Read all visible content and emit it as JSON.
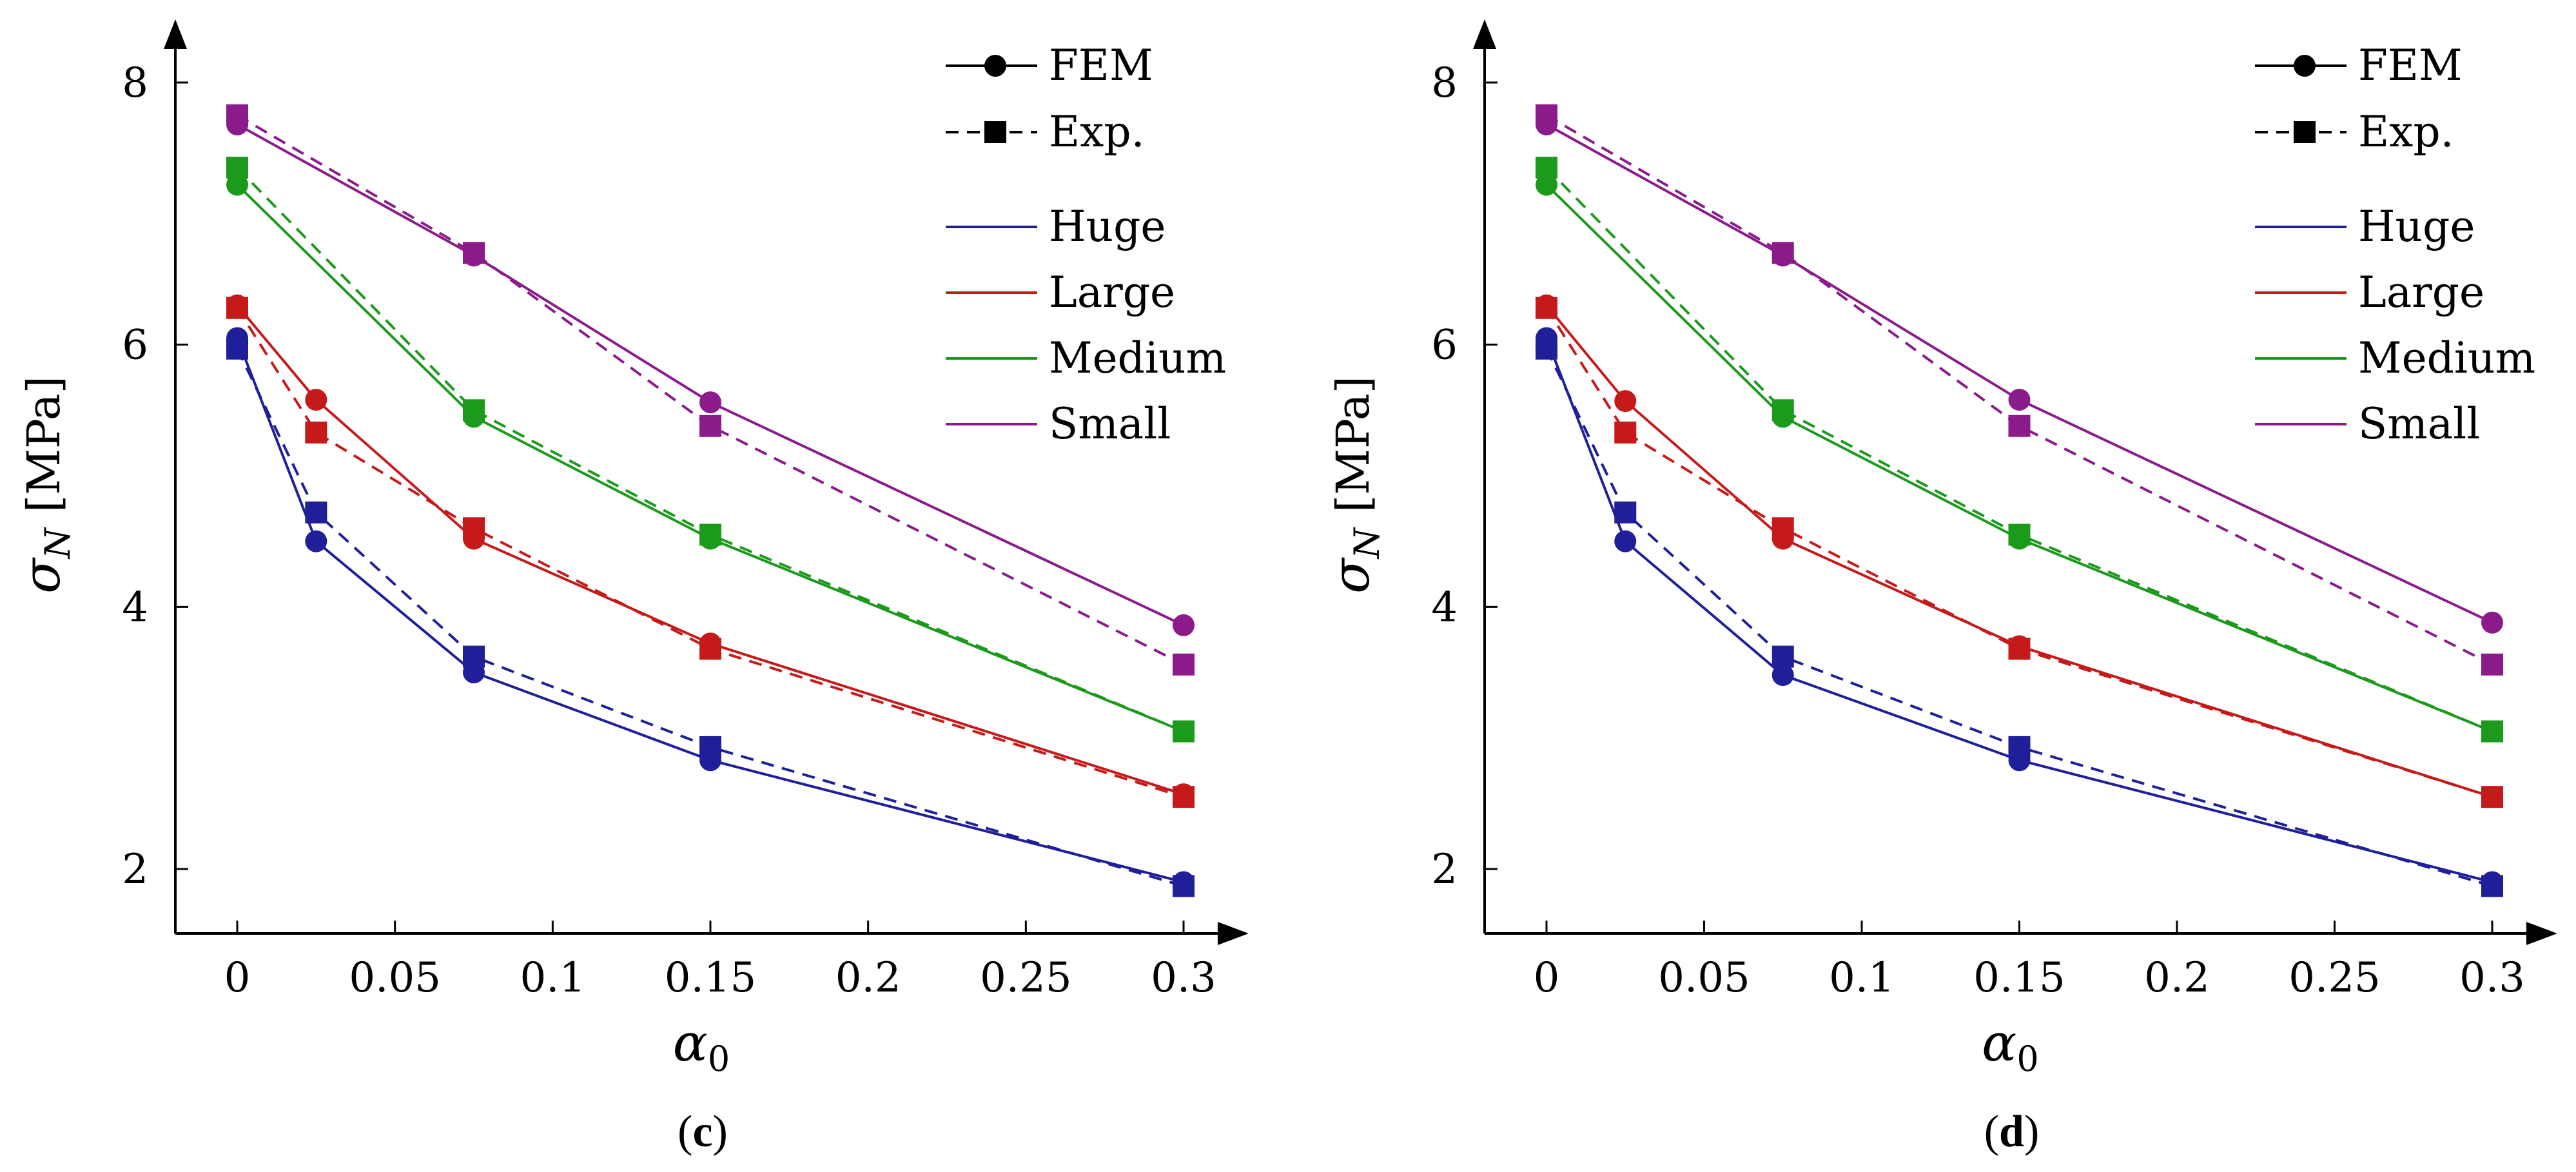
{
  "chart_data": [
    {
      "type": "line",
      "panel": "c",
      "caption": {
        "open": "(",
        "letter": "c",
        "close": ")"
      },
      "xlabel": "α",
      "xlabel_sub": "0",
      "ylabel": "σ",
      "ylabel_sub": "N",
      "ylabel_unit": "[MPa]",
      "xlim": [
        -0.02,
        0.31
      ],
      "ylim": [
        1.5,
        8.5
      ],
      "xticks": [
        0,
        0.05,
        0.1,
        0.15,
        0.2,
        0.25,
        0.3
      ],
      "xtick_labels": [
        "0",
        "0.05",
        "0.1",
        "0.15",
        "0.2",
        "0.25",
        "0.3"
      ],
      "yticks": [
        2,
        4,
        6,
        8
      ],
      "ytick_labels": [
        "2",
        "4",
        "6",
        "8"
      ],
      "legend_position": "top-right",
      "legend_styles": [
        {
          "label": "FEM",
          "line": "solid",
          "marker": "circle"
        },
        {
          "label": "Exp.",
          "line": "dashed",
          "marker": "square"
        }
      ],
      "series": [
        {
          "name": "Huge",
          "color": "#1f1f9a",
          "fem": {
            "x": [
              0,
              0.025,
              0.075,
              0.15,
              0.3
            ],
            "y": [
              6.05,
              4.5,
              3.5,
              2.83,
              1.9
            ]
          },
          "exp": {
            "x": [
              0,
              0.025,
              0.075,
              0.15,
              0.3
            ],
            "y": [
              5.97,
              4.72,
              3.62,
              2.93,
              1.87
            ]
          }
        },
        {
          "name": "Large",
          "color": "#c61a1a",
          "fem": {
            "x": [
              0,
              0.025,
              0.075,
              0.15,
              0.3
            ],
            "y": [
              6.3,
              5.58,
              4.52,
              3.72,
              2.57
            ]
          },
          "exp": {
            "x": [
              0,
              0.025,
              0.075,
              0.15,
              0.3
            ],
            "y": [
              6.28,
              5.33,
              4.6,
              3.68,
              2.55
            ]
          }
        },
        {
          "name": "Medium",
          "color": "#1b9a1b",
          "fem": {
            "x": [
              0,
              0.075,
              0.15,
              0.3
            ],
            "y": [
              7.22,
              5.45,
              4.52,
              3.05
            ]
          },
          "exp": {
            "x": [
              0,
              0.075,
              0.15,
              0.3
            ],
            "y": [
              7.35,
              5.5,
              4.55,
              3.05
            ]
          }
        },
        {
          "name": "Small",
          "color": "#8b1a8b",
          "fem": {
            "x": [
              0,
              0.075,
              0.15,
              0.3
            ],
            "y": [
              7.68,
              6.68,
              5.56,
              3.86
            ]
          },
          "exp": {
            "x": [
              0,
              0.075,
              0.15,
              0.3
            ],
            "y": [
              7.75,
              6.7,
              5.38,
              3.56
            ]
          }
        }
      ]
    },
    {
      "type": "line",
      "panel": "d",
      "caption": {
        "open": "(",
        "letter": "d",
        "close": ")"
      },
      "xlabel": "α",
      "xlabel_sub": "0",
      "ylabel": "σ",
      "ylabel_sub": "N",
      "ylabel_unit": "[MPa]",
      "xlim": [
        -0.02,
        0.31
      ],
      "ylim": [
        1.5,
        8.5
      ],
      "xticks": [
        0,
        0.05,
        0.1,
        0.15,
        0.2,
        0.25,
        0.3
      ],
      "xtick_labels": [
        "0",
        "0.05",
        "0.1",
        "0.15",
        "0.2",
        "0.25",
        "0.3"
      ],
      "yticks": [
        2,
        4,
        6,
        8
      ],
      "ytick_labels": [
        "2",
        "4",
        "6",
        "8"
      ],
      "legend_position": "top-right",
      "legend_styles": [
        {
          "label": "FEM",
          "line": "solid",
          "marker": "circle"
        },
        {
          "label": "Exp.",
          "line": "dashed",
          "marker": "square"
        }
      ],
      "series": [
        {
          "name": "Huge",
          "color": "#1f1f9a",
          "fem": {
            "x": [
              0,
              0.025,
              0.075,
              0.15,
              0.3
            ],
            "y": [
              6.05,
              4.5,
              3.48,
              2.83,
              1.9
            ]
          },
          "exp": {
            "x": [
              0,
              0.025,
              0.075,
              0.15,
              0.3
            ],
            "y": [
              5.97,
              4.72,
              3.62,
              2.93,
              1.87
            ]
          }
        },
        {
          "name": "Large",
          "color": "#c61a1a",
          "fem": {
            "x": [
              0,
              0.025,
              0.075,
              0.15,
              0.3
            ],
            "y": [
              6.3,
              5.57,
              4.52,
              3.7,
              2.55
            ]
          },
          "exp": {
            "x": [
              0,
              0.025,
              0.075,
              0.15,
              0.3
            ],
            "y": [
              6.28,
              5.33,
              4.6,
              3.68,
              2.55
            ]
          }
        },
        {
          "name": "Medium",
          "color": "#1b9a1b",
          "fem": {
            "x": [
              0,
              0.075,
              0.15,
              0.3
            ],
            "y": [
              7.22,
              5.45,
              4.52,
              3.05
            ]
          },
          "exp": {
            "x": [
              0,
              0.075,
              0.15,
              0.3
            ],
            "y": [
              7.35,
              5.5,
              4.55,
              3.05
            ]
          }
        },
        {
          "name": "Small",
          "color": "#8b1a8b",
          "fem": {
            "x": [
              0,
              0.075,
              0.15,
              0.3
            ],
            "y": [
              7.68,
              6.68,
              5.58,
              3.88
            ]
          },
          "exp": {
            "x": [
              0,
              0.075,
              0.15,
              0.3
            ],
            "y": [
              7.75,
              6.7,
              5.38,
              3.56
            ]
          }
        }
      ]
    }
  ]
}
